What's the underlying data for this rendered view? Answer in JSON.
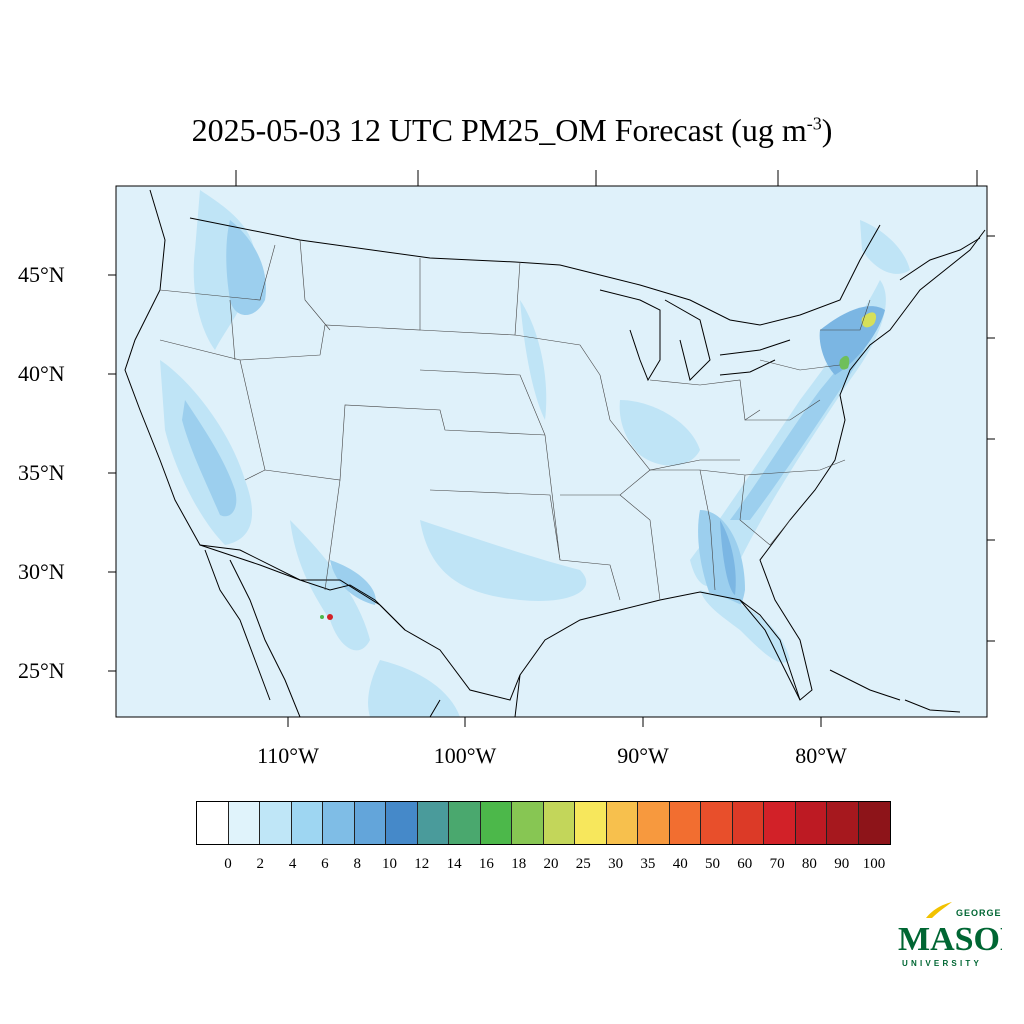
{
  "title": {
    "main": "2025-05-03 12 UTC PM25_OM Forecast (ug m",
    "sup": "-3",
    "close": ")"
  },
  "lat_labels": [
    "45°N",
    "40°N",
    "35°N",
    "30°N",
    "25°N"
  ],
  "lon_labels": [
    "110°W",
    "100°W",
    "90°W",
    "80°W"
  ],
  "colorbar": {
    "labels": [
      "0",
      "2",
      "4",
      "6",
      "8",
      "10",
      "12",
      "14",
      "16",
      "18",
      "20",
      "25",
      "30",
      "35",
      "40",
      "50",
      "60",
      "70",
      "80",
      "90",
      "100"
    ],
    "colors": [
      "#ffffff",
      "#e0f3fb",
      "#bfe6f7",
      "#9ed6f2",
      "#7fbde6",
      "#63a5da",
      "#4589c9",
      "#4a9b9b",
      "#4aa86e",
      "#4cb84a",
      "#87c653",
      "#c3d65a",
      "#f7e75c",
      "#f7c04d",
      "#f7993e",
      "#f26e30",
      "#e84f2b",
      "#dc3a27",
      "#d22128",
      "#bd1a23",
      "#a6181e",
      "#8d1419"
    ]
  },
  "logo": {
    "line1": "GEORGE",
    "line2": "MASON",
    "line3": "UNIVERSITY",
    "color": "#006633",
    "accent": "#f2c200"
  },
  "map_colors": {
    "background": "#dff1fa",
    "light": "#bfe4f6",
    "medium": "#9ccfee",
    "dark": "#7bb6e3",
    "green": "#6fbf5a",
    "yellow": "#d6e05a"
  }
}
